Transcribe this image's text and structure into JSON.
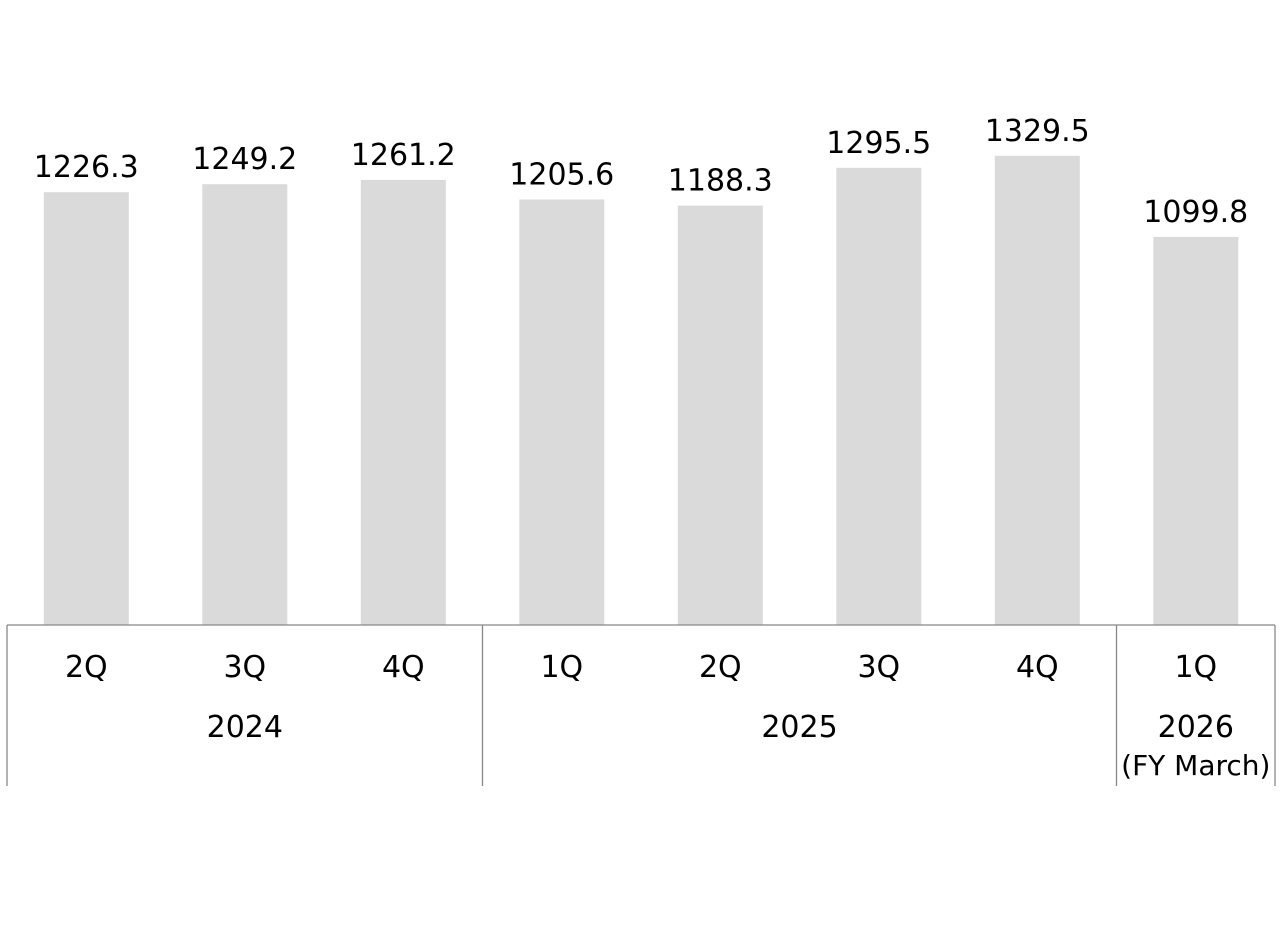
{
  "chart_data": {
    "type": "bar",
    "title": "",
    "xlabel": "",
    "ylabel": "",
    "categories": [
      "2Q",
      "3Q",
      "4Q",
      "1Q",
      "2Q",
      "3Q",
      "4Q",
      "1Q"
    ],
    "values": [
      1226.3,
      1249.2,
      1261.2,
      1205.6,
      1188.3,
      1295.5,
      1329.5,
      1099.8
    ],
    "value_labels": [
      "1226.3",
      "1249.2",
      "1261.2",
      "1205.6",
      "1188.3",
      "1295.5",
      "1329.5",
      "1099.8"
    ],
    "groups": [
      {
        "label": "2024",
        "note": "",
        "count": 3
      },
      {
        "label": "2025",
        "note": "",
        "count": 4
      },
      {
        "label": "2026",
        "note": "(FY March)",
        "count": 1
      }
    ],
    "ylim": [
      0,
      1400
    ],
    "grid": false,
    "legend": "none",
    "colors": {
      "bar": "#dadada",
      "axis": "#888888",
      "text": "#000000"
    }
  }
}
